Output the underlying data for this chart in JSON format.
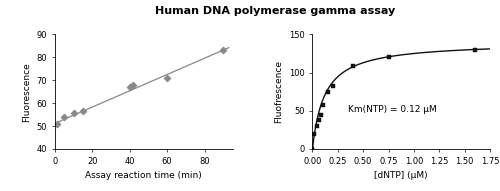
{
  "title": "Human DNA polymerase gamma assay",
  "left_plot": {
    "x_data": [
      1,
      5,
      10,
      15,
      40,
      42,
      60,
      90
    ],
    "y_data": [
      51,
      54,
      55.5,
      56.5,
      67,
      68,
      71,
      83
    ],
    "line_slope": 0.355,
    "line_intercept": 51.2,
    "xlabel": "Assay reaction time (min)",
    "ylabel": "Fluorescence",
    "xlim": [
      0,
      95
    ],
    "ylim": [
      40,
      90
    ],
    "yticks": [
      40,
      50,
      60,
      70,
      80,
      90
    ],
    "xticks": [
      0,
      20,
      40,
      60,
      80
    ],
    "marker": "D",
    "marker_color": "#888888",
    "line_color": "#888888"
  },
  "right_plot": {
    "x_data": [
      0.0,
      0.02,
      0.04,
      0.06,
      0.08,
      0.1,
      0.15,
      0.2,
      0.4,
      0.75,
      1.6
    ],
    "y_data": [
      0,
      20,
      30,
      38,
      45,
      57,
      75,
      82,
      108,
      120,
      130
    ],
    "Km": 0.12,
    "Vmax": 140,
    "xlabel": "[dNTP] (μM)",
    "ylabel": "Fluofrescence",
    "xlim": [
      0,
      1.75
    ],
    "ylim": [
      0,
      150
    ],
    "yticks": [
      0,
      50,
      100,
      150
    ],
    "xticks": [
      0.0,
      0.25,
      0.5,
      0.75,
      1.0,
      1.25,
      1.5,
      1.75
    ],
    "annotation": "Km(NTP) = 0.12 μM",
    "marker": "s",
    "marker_color": "#111111",
    "line_color": "#111111"
  },
  "background_color": "#ffffff",
  "title_fontsize": 8,
  "label_fontsize": 6.5,
  "tick_fontsize": 6
}
